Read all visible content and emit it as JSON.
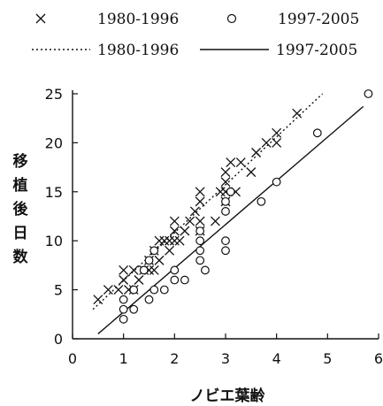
{
  "chart_data": {
    "type": "scatter",
    "xlabel": "ノビエ葉齢",
    "ylabel": "移植後日数",
    "xlim": [
      0,
      6
    ],
    "ylim": [
      0,
      25
    ],
    "xticks": [
      0,
      1,
      2,
      3,
      4,
      5,
      6
    ],
    "yticks": [
      0,
      5,
      10,
      15,
      20,
      25
    ],
    "grid": false,
    "legend": {
      "placement": "top",
      "entries": [
        {
          "label": "1980-1996",
          "marker": "x"
        },
        {
          "label": "1997-2005",
          "marker": "o"
        },
        {
          "label": "1980-1996",
          "line": "dotted"
        },
        {
          "label": "1997-2005",
          "line": "solid"
        }
      ]
    },
    "series": [
      {
        "name": "1980-1996",
        "marker": "x",
        "points": [
          [
            0.5,
            4
          ],
          [
            0.7,
            5
          ],
          [
            0.9,
            5
          ],
          [
            1.0,
            6
          ],
          [
            1.0,
            7
          ],
          [
            1.1,
            5
          ],
          [
            1.2,
            5
          ],
          [
            1.2,
            7
          ],
          [
            1.3,
            6
          ],
          [
            1.4,
            7
          ],
          [
            1.5,
            7
          ],
          [
            1.5,
            8
          ],
          [
            1.6,
            7
          ],
          [
            1.7,
            8
          ],
          [
            1.6,
            9
          ],
          [
            1.7,
            10
          ],
          [
            1.8,
            10
          ],
          [
            1.9,
            9
          ],
          [
            1.9,
            10
          ],
          [
            2.0,
            10
          ],
          [
            2.0,
            11
          ],
          [
            2.0,
            12
          ],
          [
            2.1,
            10
          ],
          [
            2.2,
            11
          ],
          [
            2.3,
            12
          ],
          [
            2.4,
            13
          ],
          [
            2.5,
            11
          ],
          [
            2.5,
            12
          ],
          [
            2.5,
            14
          ],
          [
            2.5,
            15
          ],
          [
            2.8,
            12
          ],
          [
            2.9,
            15
          ],
          [
            3.0,
            14
          ],
          [
            3.0,
            15
          ],
          [
            3.0,
            16
          ],
          [
            3.0,
            17
          ],
          [
            3.1,
            18
          ],
          [
            3.2,
            15
          ],
          [
            3.3,
            18
          ],
          [
            3.5,
            17
          ],
          [
            3.6,
            19
          ],
          [
            3.8,
            20
          ],
          [
            4.0,
            20
          ],
          [
            4.0,
            21
          ],
          [
            4.4,
            23
          ]
        ]
      },
      {
        "name": "1997-2005",
        "marker": "o",
        "points": [
          [
            1.0,
            2
          ],
          [
            1.0,
            3
          ],
          [
            1.2,
            3
          ],
          [
            1.0,
            4
          ],
          [
            1.2,
            5
          ],
          [
            1.5,
            4
          ],
          [
            1.6,
            5
          ],
          [
            1.8,
            5
          ],
          [
            1.4,
            7
          ],
          [
            1.5,
            8
          ],
          [
            1.6,
            9
          ],
          [
            2.0,
            7
          ],
          [
            2.0,
            6
          ],
          [
            2.2,
            6
          ],
          [
            2.5,
            8
          ],
          [
            2.5,
            9
          ],
          [
            2.6,
            7
          ],
          [
            2.5,
            10
          ],
          [
            2.5,
            11
          ],
          [
            3.0,
            9
          ],
          [
            3.0,
            10
          ],
          [
            3.0,
            14
          ],
          [
            3.0,
            13
          ],
          [
            3.1,
            15
          ],
          [
            3.7,
            14
          ],
          [
            4.0,
            16
          ],
          [
            4.8,
            21
          ],
          [
            5.8,
            25
          ]
        ]
      }
    ],
    "lines": [
      {
        "name": "1980-1996",
        "style": "dotted",
        "from": [
          0.4,
          3
        ],
        "to": [
          4.9,
          25
        ]
      },
      {
        "name": "1997-2005",
        "style": "solid",
        "from": [
          0.5,
          0.5
        ],
        "to": [
          5.7,
          23.7
        ]
      }
    ]
  }
}
